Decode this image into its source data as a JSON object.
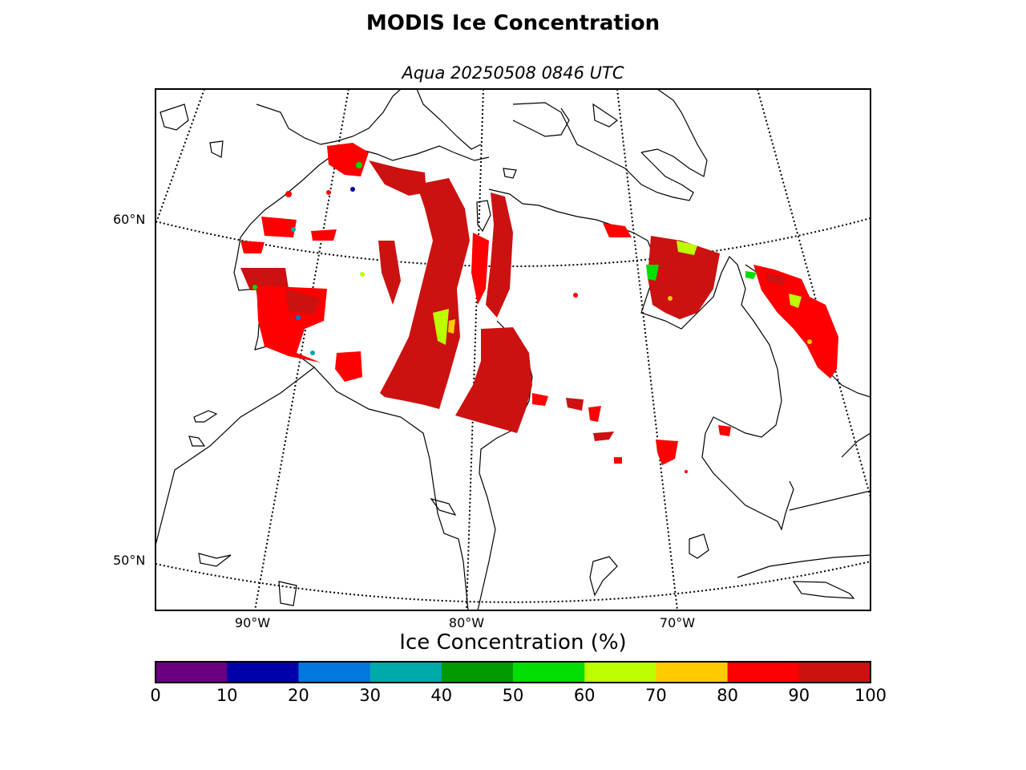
{
  "title": "MODIS Ice Concentration",
  "subtitle": "Aqua 20250508 0846 UTC",
  "lat_labels": [
    "60°N",
    "50°N"
  ],
  "lon_labels": [
    "90°W",
    "80°W",
    "70°W"
  ],
  "colorbar": {
    "title": "Ice Concentration (%)",
    "ticks": [
      "0",
      "10",
      "20",
      "30",
      "40",
      "50",
      "60",
      "70",
      "80",
      "90",
      "100"
    ],
    "colors": [
      "#6a007f",
      "#0000a8",
      "#0077dd",
      "#00aaaa",
      "#009900",
      "#00dd00",
      "#bbff00",
      "#ffcc00",
      "#ff0000",
      "#cc1111"
    ]
  },
  "colors": {
    "ice_high": "#cc1111",
    "ice_mid": "#ff0000",
    "ice_low": "#bbff00",
    "coast": "#000000"
  }
}
